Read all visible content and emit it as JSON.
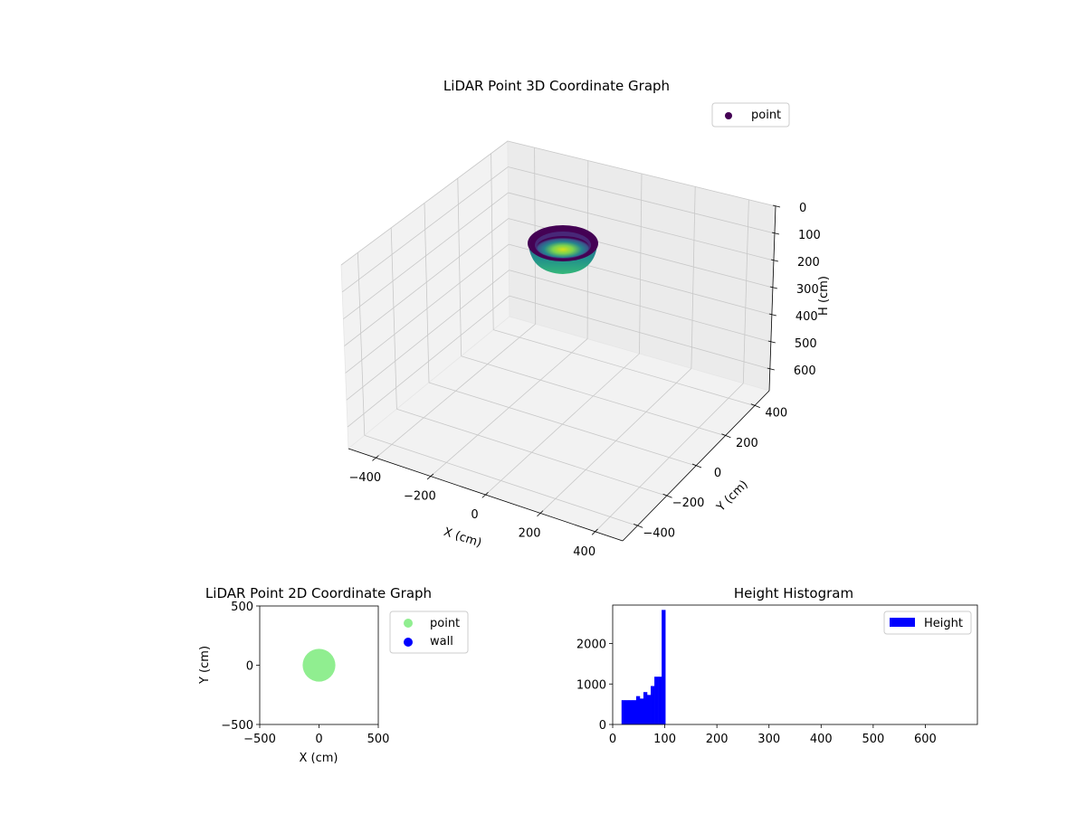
{
  "chart_data": [
    {
      "type": "scatter3d",
      "title": "LiDAR Point 3D Coordinate Graph",
      "xlabel": "X (cm)",
      "ylabel": "Y (cm)",
      "zlabel": "H (cm)",
      "xlim": [
        -500,
        500
      ],
      "ylim": [
        -500,
        500
      ],
      "zlim": [
        0,
        680
      ],
      "z_inverted": true,
      "x_ticks": [
        "-400",
        "-200",
        "0",
        "200",
        "400"
      ],
      "y_ticks": [
        "-400",
        "-200",
        "0",
        "200",
        "400"
      ],
      "z_ticks": [
        "0",
        "100",
        "200",
        "300",
        "400",
        "500",
        "600"
      ],
      "legend": [
        "point"
      ],
      "legend_position": "upper-right",
      "colormap": "viridis",
      "series": [
        {
          "name": "point",
          "shape": "hemispherical bowl",
          "center": [
            0,
            0
          ],
          "radius": 100,
          "z_range": [
            0,
            100
          ]
        }
      ],
      "grid": true
    },
    {
      "type": "scatter",
      "title": "LiDAR Point 2D Coordinate Graph",
      "xlabel": "X (cm)",
      "ylabel": "Y (cm)",
      "xlim": [
        -500,
        500
      ],
      "ylim": [
        -500,
        500
      ],
      "x_ticks": [
        "-500",
        "0",
        "500"
      ],
      "y_ticks": [
        "-500",
        "0",
        "500"
      ],
      "legend": [
        "point",
        "wall"
      ],
      "legend_position": "outside-right",
      "series": [
        {
          "name": "point",
          "color": "#90ee90",
          "shape": "filled disc",
          "center": [
            0,
            0
          ],
          "radius": 100
        },
        {
          "name": "wall",
          "color": "#0000ff",
          "points": []
        }
      ],
      "grid": false
    },
    {
      "type": "bar",
      "title": "Height Histogram",
      "xlabel": "",
      "ylabel": "",
      "xlim": [
        0,
        700
      ],
      "ylim": [
        0,
        2950
      ],
      "x_ticks": [
        "0",
        "100",
        "200",
        "300",
        "400",
        "500",
        "600"
      ],
      "y_ticks": [
        "0",
        "1000",
        "2000"
      ],
      "legend": [
        "Height"
      ],
      "legend_position": "upper-right",
      "bin_width": 7,
      "bins": [
        {
          "x0": 17,
          "count": 600
        },
        {
          "x0": 24,
          "count": 600
        },
        {
          "x0": 31,
          "count": 600
        },
        {
          "x0": 38,
          "count": 600
        },
        {
          "x0": 45,
          "count": 700
        },
        {
          "x0": 52,
          "count": 640
        },
        {
          "x0": 59,
          "count": 800
        },
        {
          "x0": 66,
          "count": 730
        },
        {
          "x0": 73,
          "count": 950
        },
        {
          "x0": 80,
          "count": 1180
        },
        {
          "x0": 87,
          "count": 1180
        },
        {
          "x0": 94,
          "count": 2830
        }
      ],
      "color": "#0000ff",
      "grid": false
    }
  ]
}
